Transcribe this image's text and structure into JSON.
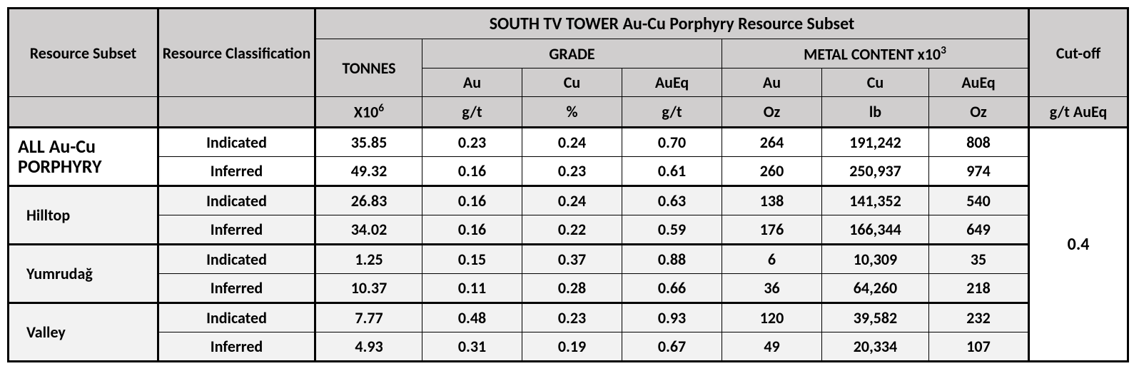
{
  "header": {
    "resource_subset": "Resource Subset",
    "resource_classification": "Resource Classification",
    "main_title": "SOUTH TV TOWER Au-Cu Porphyry Resource Subset",
    "tonnes": "TONNES",
    "grade": "GRADE",
    "metal_content": "METAL CONTENT x10",
    "metal_content_sup": "3",
    "cutoff": "Cut-off",
    "au": "Au",
    "cu": "Cu",
    "aueq": "AuEq",
    "tonnes_unit_prefix": "X10",
    "tonnes_unit_sup": "6",
    "grade_au_unit": "g/t",
    "grade_cu_unit": "%",
    "grade_aueq_unit": "g/t",
    "metal_au_unit": "Oz",
    "metal_cu_unit": "lb",
    "metal_aueq_unit": "Oz",
    "cutoff_unit": "g/t AuEq"
  },
  "cutoff_value": "0.4",
  "groups": [
    {
      "name": "ALL Au-Cu PORPHYRY",
      "style": "main",
      "rows": [
        {
          "class": "Indicated",
          "tonnes": "35.85",
          "au_g": "0.23",
          "cu_g": "0.24",
          "aueq_g": "0.70",
          "au_m": "264",
          "cu_m": "191,242",
          "aueq_m": "808"
        },
        {
          "class": "Inferred",
          "tonnes": "49.32",
          "au_g": "0.16",
          "cu_g": "0.23",
          "aueq_g": "0.61",
          "au_m": "260",
          "cu_m": "250,937",
          "aueq_m": "974"
        }
      ]
    },
    {
      "name": "Hilltop",
      "style": "sub",
      "rows": [
        {
          "class": "Indicated",
          "tonnes": "26.83",
          "au_g": "0.16",
          "cu_g": "0.24",
          "aueq_g": "0.63",
          "au_m": "138",
          "cu_m": "141,352",
          "aueq_m": "540"
        },
        {
          "class": "Inferred",
          "tonnes": "34.02",
          "au_g": "0.16",
          "cu_g": "0.22",
          "aueq_g": "0.59",
          "au_m": "176",
          "cu_m": "166,344",
          "aueq_m": "649"
        }
      ]
    },
    {
      "name": "Yumrudağ",
      "style": "sub",
      "rows": [
        {
          "class": "Indicated",
          "tonnes": "1.25",
          "au_g": "0.15",
          "cu_g": "0.37",
          "aueq_g": "0.88",
          "au_m": "6",
          "cu_m": "10,309",
          "aueq_m": "35"
        },
        {
          "class": "Inferred",
          "tonnes": "10.37",
          "au_g": "0.11",
          "cu_g": "0.28",
          "aueq_g": "0.66",
          "au_m": "36",
          "cu_m": "64,260",
          "aueq_m": "218"
        }
      ]
    },
    {
      "name": "Valley",
      "style": "sub",
      "rows": [
        {
          "class": "Indicated",
          "tonnes": "7.77",
          "au_g": "0.48",
          "cu_g": "0.23",
          "aueq_g": "0.93",
          "au_m": "120",
          "cu_m": "39,582",
          "aueq_m": "232"
        },
        {
          "class": "Inferred",
          "tonnes": "4.93",
          "au_g": "0.31",
          "cu_g": "0.19",
          "aueq_g": "0.67",
          "au_m": "49",
          "cu_m": "20,334",
          "aueq_m": "107"
        }
      ]
    }
  ],
  "colors": {
    "header_bg": "#d0cece",
    "sub_bg": "#f2f2f2",
    "main_bg": "#ffffff",
    "border": "#000000"
  }
}
